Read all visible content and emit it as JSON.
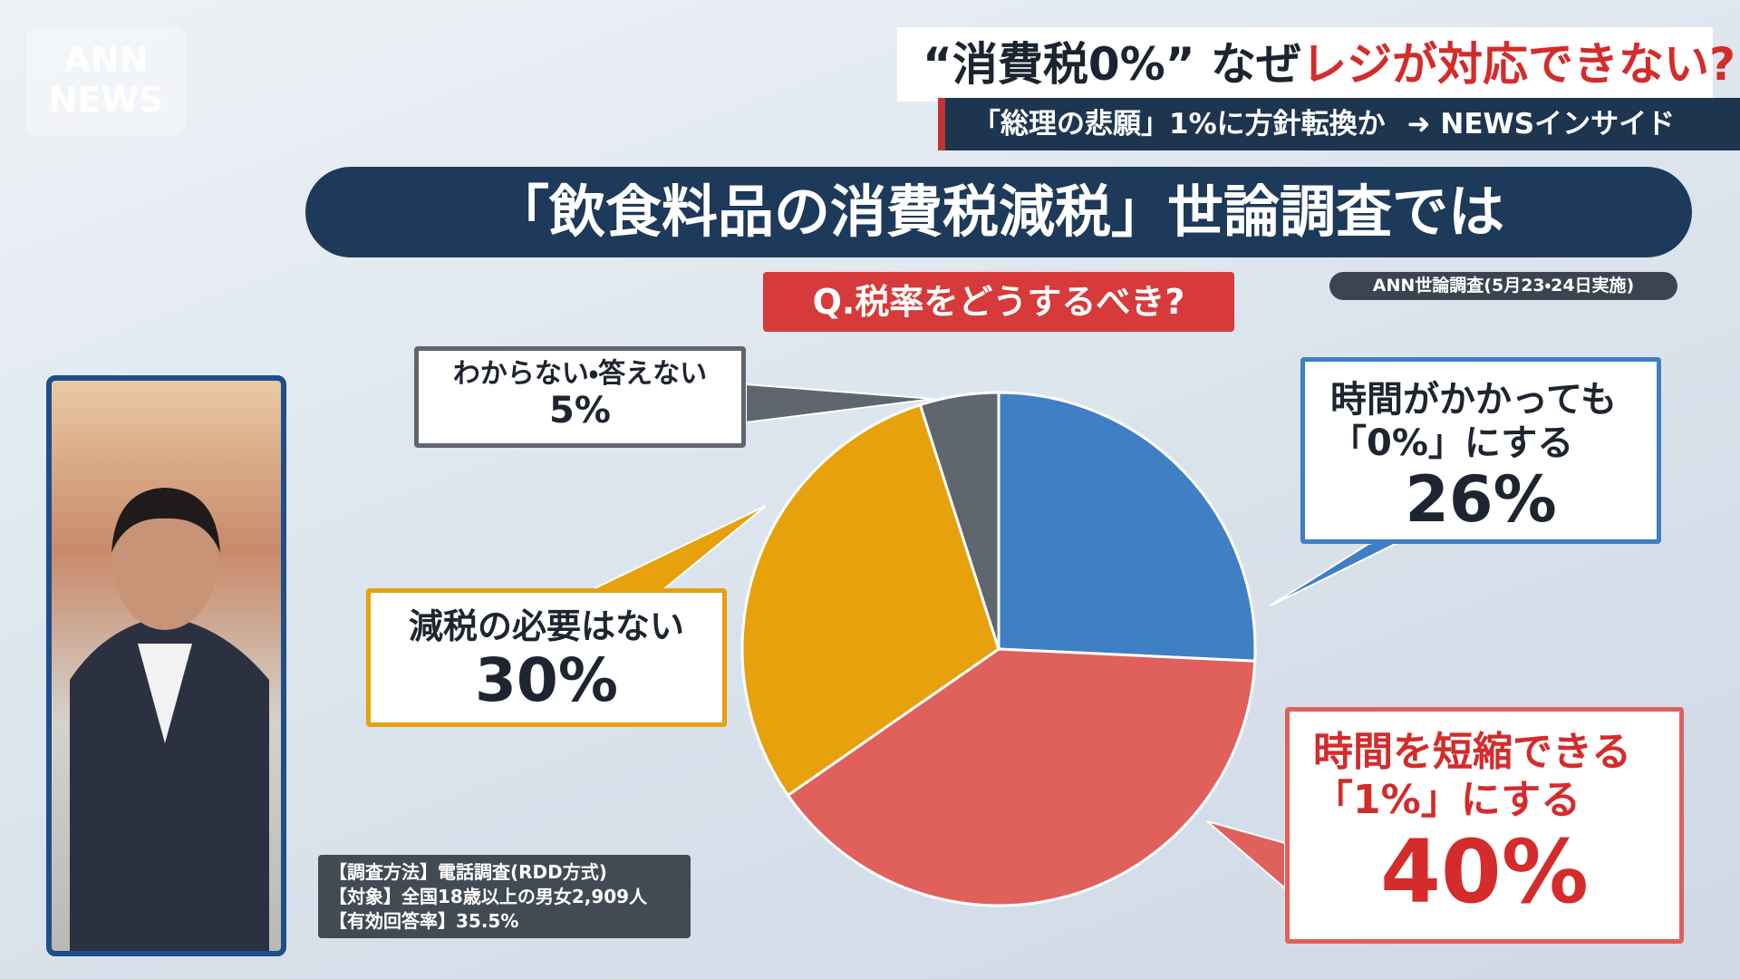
{
  "logo": {
    "line1": "ANN",
    "line2": "NEWS"
  },
  "headline": {
    "text": "“消費税0%” なぜ",
    "highlight": "レジが対応できない?"
  },
  "subheadline": {
    "text": "「総理の悲願」1%に方針転換か",
    "program": "NEWSインサイド"
  },
  "chart_data": {
    "type": "pie",
    "title": "「飲食料品の消費税減税」世論調査では",
    "subtitle": "Q.税率をどうするべき?",
    "source": "ANN世論調査(5月23・24日実施)",
    "notes": [
      "【調査方法】電話調査(RDD方式)",
      "【対象】全国18歳以上の男女2,909人",
      "【有効回答率】35.5%"
    ],
    "categories": [
      "時間がかかっても「0%」にする",
      "時間を短縮できる「1%」にする",
      "減税の必要はない",
      "わからない・答えない"
    ],
    "values": [
      26,
      40,
      30,
      5
    ],
    "value_labels": [
      "26%",
      "40%",
      "30%",
      "5%"
    ],
    "colors": [
      "#3f7fc4",
      "#e0605c",
      "#e6a10d",
      "#5f6670"
    ]
  }
}
